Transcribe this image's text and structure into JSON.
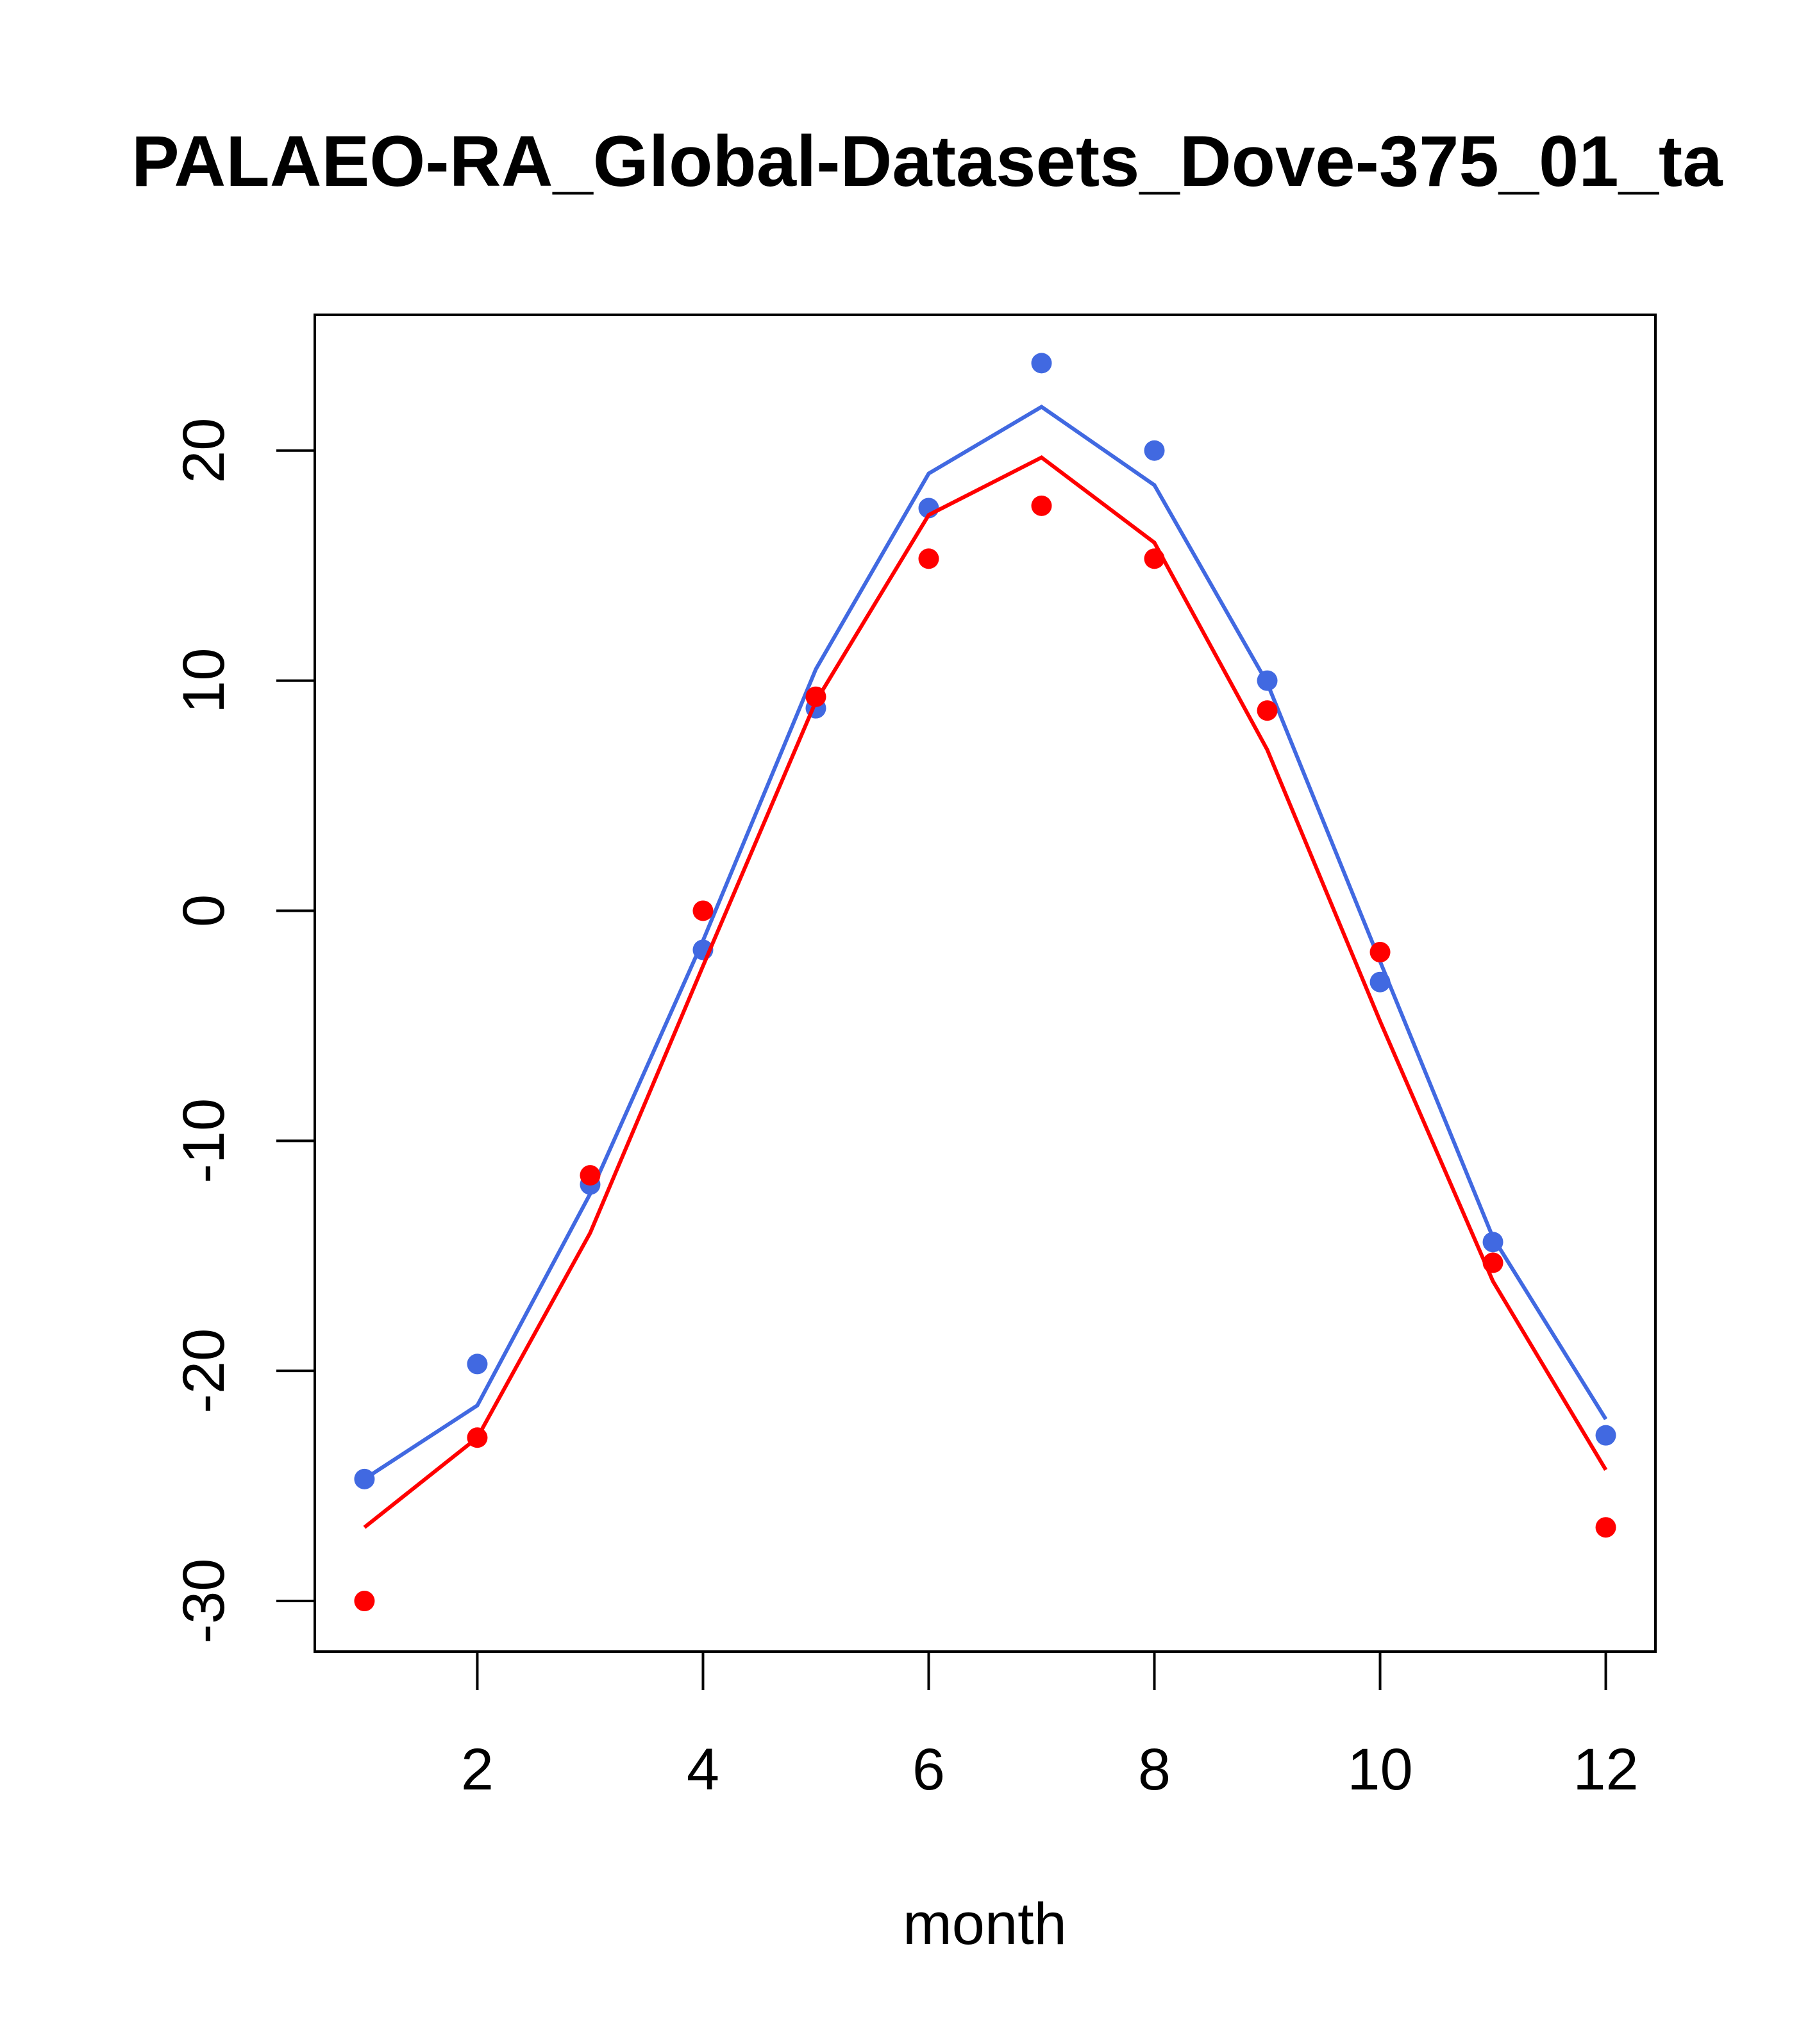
{
  "chart_data": {
    "type": "line",
    "title": "PALAEO-RA_Global-Datasets_Dove-375_01_ta",
    "xlabel": "month",
    "ylabel": "",
    "xlim": [
      0.56,
      12.44
    ],
    "ylim": [
      -32.2,
      25.9
    ],
    "x_ticks": [
      "2",
      "4",
      "6",
      "8",
      "10",
      "12"
    ],
    "y_ticks": [
      "-30",
      "-20",
      "-10",
      "0",
      "10",
      "20"
    ],
    "grid": false,
    "legend": "none",
    "x": [
      1,
      2,
      3,
      4,
      5,
      6,
      7,
      8,
      9,
      10,
      11,
      12
    ],
    "series": [
      {
        "color": "#4169E1",
        "style": "line",
        "values": [
          -24.7,
          -21.5,
          -12.3,
          -1.3,
          10.5,
          19.0,
          21.9,
          18.5,
          9.9,
          -2.2,
          -14.2,
          -22.1
        ]
      },
      {
        "color": "#4169E1",
        "style": "points",
        "values": [
          -24.7,
          -19.7,
          -11.9,
          -1.7,
          8.8,
          17.5,
          23.8,
          20.0,
          10.0,
          -3.1,
          -14.4,
          -22.8
        ]
      },
      {
        "color": "#FF0000",
        "style": "line",
        "values": [
          -26.8,
          -22.9,
          -14.0,
          -2.4,
          9.1,
          17.2,
          19.7,
          16.0,
          7.0,
          -4.8,
          -16.1,
          -24.3
        ]
      },
      {
        "color": "#FF0000",
        "style": "points",
        "values": [
          -30.0,
          -22.9,
          -11.5,
          0.0,
          9.3,
          15.3,
          17.6,
          15.3,
          8.7,
          -1.8,
          -15.3,
          -26.8
        ]
      }
    ]
  }
}
